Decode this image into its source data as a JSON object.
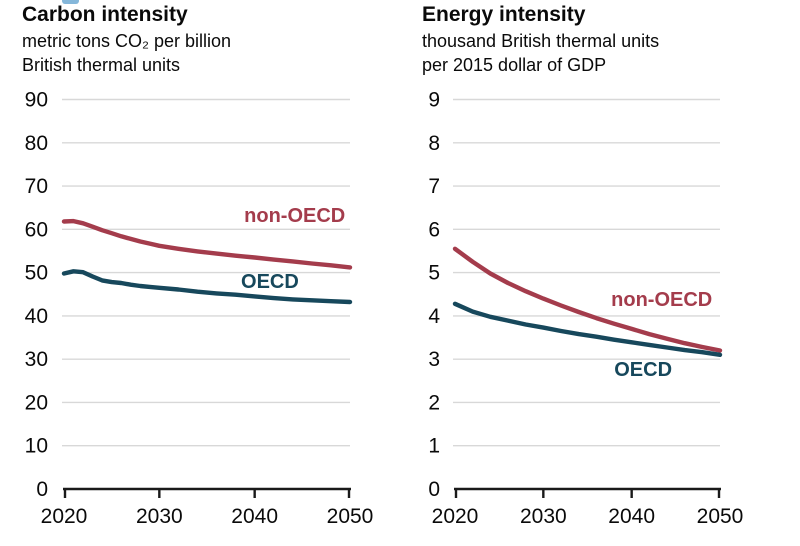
{
  "colors": {
    "non_oecd": "#a43c4c",
    "oecd": "#17485c",
    "grid": "#d8d8d8",
    "axis": "#1a1a1a",
    "text": "#0a0a0a",
    "artifact": "#85b7da"
  },
  "chart_data": [
    {
      "type": "line",
      "title": "Carbon intensity",
      "subtitle_lines": [
        "metric tons CO₂ per billion",
        "British thermal units"
      ],
      "xlabel": "",
      "ylabel": "",
      "xlim": [
        2020,
        2050
      ],
      "ylim": [
        0,
        90
      ],
      "ytick_step": 10,
      "xticks": [
        2020,
        2030,
        2040,
        2050
      ],
      "grid": true,
      "legend_position": "inline-labels",
      "series": [
        {
          "name": "non-OECD",
          "color_key": "non_oecd",
          "label_at": [
            2044.2,
            63.3
          ],
          "x": [
            2020,
            2021,
            2022,
            2023,
            2024,
            2025,
            2026,
            2027,
            2028,
            2029,
            2030,
            2032,
            2034,
            2036,
            2038,
            2040,
            2042,
            2044,
            2046,
            2048,
            2050
          ],
          "values": [
            61.8,
            61.9,
            61.4,
            60.6,
            59.8,
            59.1,
            58.4,
            57.8,
            57.2,
            56.7,
            56.2,
            55.5,
            54.9,
            54.4,
            53.9,
            53.5,
            53.0,
            52.6,
            52.1,
            51.7,
            51.2
          ]
        },
        {
          "name": "OECD",
          "color_key": "oecd",
          "label_at": [
            2041.6,
            48.1
          ],
          "x": [
            2020,
            2021,
            2022,
            2023,
            2024,
            2025,
            2026,
            2027,
            2028,
            2029,
            2030,
            2032,
            2034,
            2036,
            2038,
            2040,
            2042,
            2044,
            2046,
            2048,
            2050
          ],
          "values": [
            49.8,
            50.3,
            50.1,
            49.1,
            48.2,
            47.8,
            47.6,
            47.2,
            46.9,
            46.7,
            46.5,
            46.1,
            45.6,
            45.2,
            44.9,
            44.5,
            44.1,
            43.8,
            43.6,
            43.4,
            43.2
          ]
        }
      ]
    },
    {
      "type": "line",
      "title": "Energy intensity",
      "subtitle_lines": [
        "thousand British thermal units",
        "per 2015 dollar of GDP"
      ],
      "xlabel": "",
      "ylabel": "",
      "xlim": [
        2020,
        2050
      ],
      "ylim": [
        0,
        9
      ],
      "ytick_step": 1,
      "xticks": [
        2020,
        2030,
        2040,
        2050
      ],
      "grid": true,
      "legend_position": "inline-labels",
      "series": [
        {
          "name": "non-OECD",
          "color_key": "non_oecd",
          "label_at": [
            2043.4,
            4.39
          ],
          "x": [
            2020,
            2022,
            2024,
            2026,
            2028,
            2030,
            2032,
            2034,
            2036,
            2038,
            2040,
            2042,
            2044,
            2046,
            2048,
            2050
          ],
          "values": [
            5.55,
            5.25,
            4.98,
            4.76,
            4.57,
            4.4,
            4.24,
            4.09,
            3.95,
            3.82,
            3.7,
            3.58,
            3.47,
            3.37,
            3.28,
            3.2
          ]
        },
        {
          "name": "OECD",
          "color_key": "oecd",
          "label_at": [
            2041.3,
            2.77
          ],
          "x": [
            2020,
            2022,
            2024,
            2026,
            2028,
            2030,
            2032,
            2034,
            2036,
            2038,
            2040,
            2042,
            2044,
            2046,
            2048,
            2050
          ],
          "values": [
            4.28,
            4.1,
            3.98,
            3.89,
            3.8,
            3.73,
            3.65,
            3.58,
            3.52,
            3.45,
            3.39,
            3.33,
            3.27,
            3.21,
            3.16,
            3.1
          ]
        }
      ]
    }
  ]
}
